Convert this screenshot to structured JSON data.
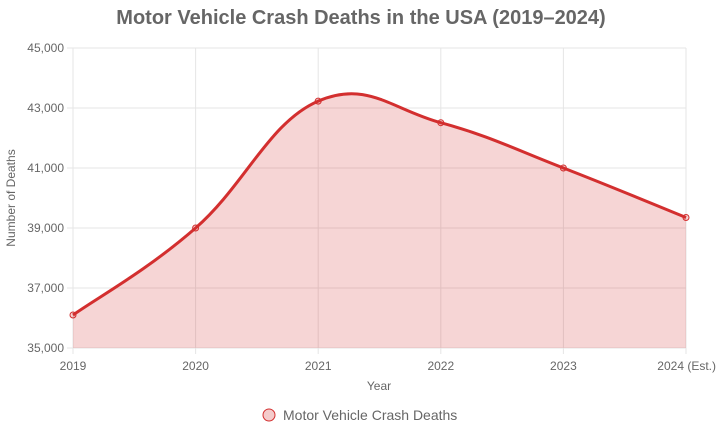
{
  "chart_data": {
    "type": "line",
    "title": "Motor Vehicle Crash Deaths in the USA (2019–2024)",
    "xlabel": "Year",
    "ylabel": "Number of Deaths",
    "categories": [
      "2019",
      "2020",
      "2021",
      "2022",
      "2023",
      "2024 (Est.)"
    ],
    "series": [
      {
        "name": "Motor Vehicle Crash Deaths",
        "values": [
          36100,
          39000,
          43230,
          42510,
          41000,
          39350
        ],
        "color": "#d32f2f",
        "fill": "rgba(211,47,47,0.2)"
      }
    ],
    "ylim": [
      35000,
      45000
    ],
    "yticks": [
      "35,000",
      "37,000",
      "39,000",
      "41,000",
      "43,000",
      "45,000"
    ],
    "grid": true,
    "legend_position": "bottom"
  }
}
